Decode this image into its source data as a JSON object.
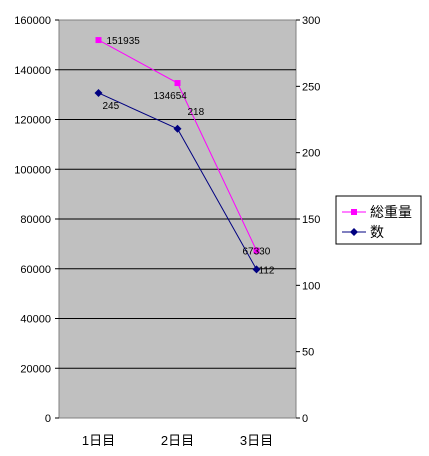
{
  "chart_data": {
    "type": "line",
    "categories": [
      "1日目",
      "2日目",
      "3日目"
    ],
    "series": [
      {
        "name": "総重量",
        "axis": "left",
        "color": "#ff00ff",
        "marker": "square",
        "values": [
          151935,
          134654,
          67330
        ],
        "labels": [
          "151935",
          "134654",
          "67330"
        ]
      },
      {
        "name": "数",
        "axis": "right",
        "color": "#000080",
        "marker": "diamond",
        "values": [
          245,
          218,
          112
        ],
        "labels": [
          "245",
          "218",
          "112"
        ]
      }
    ],
    "y_left": {
      "min": 0,
      "max": 160000,
      "ticks": [
        "0",
        "20000",
        "40000",
        "60000",
        "80000",
        "100000",
        "120000",
        "140000",
        "160000"
      ]
    },
    "y_right": {
      "min": 0,
      "max": 300,
      "ticks": [
        "0",
        "50",
        "100",
        "150",
        "200",
        "250",
        "300"
      ]
    },
    "plot_background": "#c0c0c0",
    "grid": true,
    "legend_position": "right",
    "title": "",
    "xlabel": "",
    "ylabel": ""
  }
}
